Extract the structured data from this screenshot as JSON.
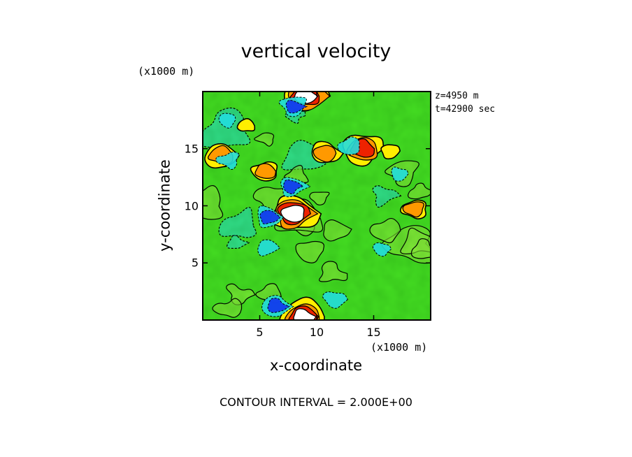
{
  "chart_data": {
    "type": "heatmap",
    "title": "vertical velocity",
    "xlabel": "x-coordinate",
    "ylabel": "y-coordinate",
    "x_unit": "(x1000 m)",
    "y_unit": "(x1000 m)",
    "xlim": [
      0,
      20
    ],
    "ylim": [
      0,
      20
    ],
    "x_ticks": [
      5,
      10,
      15
    ],
    "y_ticks": [
      5,
      10,
      15
    ],
    "annotations": {
      "z": "z=4950 m",
      "t": "t=42900 sec",
      "contour_interval": "CONTOUR INTERVAL = 2.000E+00"
    },
    "colors": {
      "background_field": "#44dd22",
      "updraft_low": "#ffee00",
      "updraft_mid": "#ff9900",
      "updraft_high": "#ee2200",
      "updraft_peak": "#ffffff",
      "downdraft_low": "#22dddd",
      "downdraft_high": "#1133ee"
    },
    "features": [
      {
        "kind": "updraft",
        "x": 8.0,
        "y": 9.3,
        "strength": 1.0
      },
      {
        "kind": "updraft",
        "x": 8.8,
        "y": 0.3,
        "strength": 0.95
      },
      {
        "kind": "updraft",
        "x": 9.0,
        "y": 19.6,
        "strength": 0.9
      },
      {
        "kind": "updraft",
        "x": 14.0,
        "y": 15.0,
        "strength": 0.85
      },
      {
        "kind": "updraft",
        "x": 1.6,
        "y": 14.4,
        "strength": 0.6
      },
      {
        "kind": "updraft",
        "x": 5.5,
        "y": 13.0,
        "strength": 0.45
      },
      {
        "kind": "updraft",
        "x": 10.8,
        "y": 14.6,
        "strength": 0.5
      },
      {
        "kind": "updraft",
        "x": 18.6,
        "y": 9.7,
        "strength": 0.45
      },
      {
        "kind": "updraft",
        "x": 16.5,
        "y": 14.8,
        "strength": 0.25
      },
      {
        "kind": "updraft",
        "x": 3.8,
        "y": 17.0,
        "strength": 0.2
      },
      {
        "kind": "downdraft",
        "x": 7.8,
        "y": 11.7,
        "strength": 0.55
      },
      {
        "kind": "downdraft",
        "x": 5.8,
        "y": 9.0,
        "strength": 0.6
      },
      {
        "kind": "downdraft",
        "x": 6.5,
        "y": 1.2,
        "strength": 0.6
      },
      {
        "kind": "downdraft",
        "x": 8.0,
        "y": 18.7,
        "strength": 0.55
      },
      {
        "kind": "downdraft",
        "x": 12.8,
        "y": 15.2,
        "strength": 0.45
      },
      {
        "kind": "downdraft",
        "x": 2.3,
        "y": 14.0,
        "strength": 0.4
      },
      {
        "kind": "downdraft",
        "x": 5.7,
        "y": 6.3,
        "strength": 0.35
      },
      {
        "kind": "downdraft",
        "x": 15.8,
        "y": 6.2,
        "strength": 0.3
      },
      {
        "kind": "downdraft",
        "x": 2.2,
        "y": 17.5,
        "strength": 0.3
      },
      {
        "kind": "downdraft",
        "x": 11.5,
        "y": 1.8,
        "strength": 0.4
      },
      {
        "kind": "downdraft",
        "x": 17.3,
        "y": 12.8,
        "strength": 0.3
      }
    ]
  }
}
